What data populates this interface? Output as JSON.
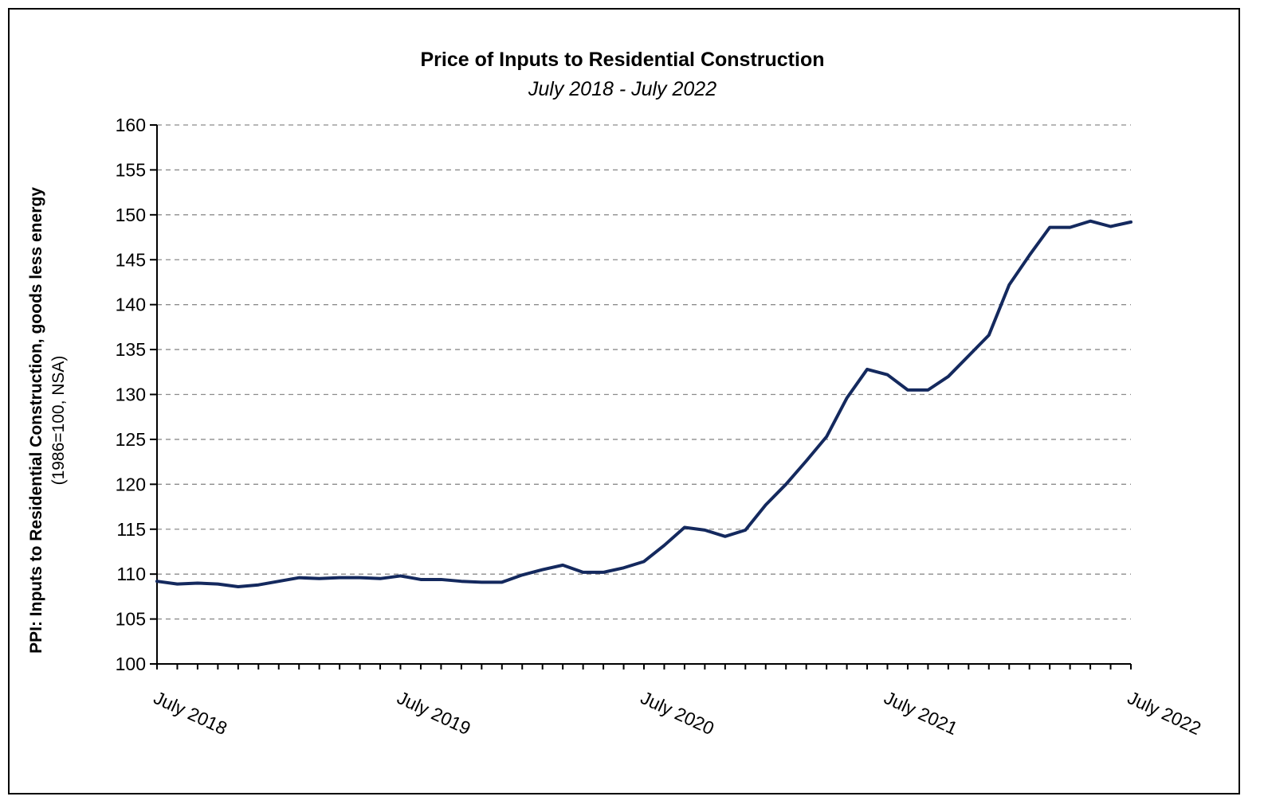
{
  "chart_data": {
    "type": "line",
    "title": "Price of Inputs to Residential Construction",
    "subtitle": "July 2018 - July 2022",
    "ylabel": "PPI: Inputs to Residential Construction, goods less energy",
    "ylabel_sub": "(1986=100, NSA)",
    "xlabel": "",
    "ylim": [
      100,
      160
    ],
    "yticks": [
      100,
      105,
      110,
      115,
      120,
      125,
      130,
      135,
      140,
      145,
      150,
      155,
      160
    ],
    "ytick_labels": [
      "100",
      "105",
      "110",
      "115",
      "120",
      "125",
      "130",
      "135",
      "140",
      "145",
      "150",
      "155",
      "160"
    ],
    "x_tick_labels": [
      "July 2018",
      "July 2019",
      "July 2020",
      "July 2021",
      "July 2022"
    ],
    "x_label_months": [
      0,
      12,
      24,
      36,
      48
    ],
    "grid": "horizontal-dashed",
    "line_color": "#14295e",
    "series": [
      {
        "values": [
          109.2,
          108.9,
          109.0,
          108.9,
          108.6,
          108.8,
          109.2,
          109.6,
          109.5,
          109.6,
          109.6,
          109.5,
          109.8,
          109.4,
          109.4,
          109.2,
          109.1,
          109.1,
          109.9,
          110.5,
          111.0,
          110.2,
          110.2,
          110.7,
          111.4,
          113.2,
          115.2,
          114.9,
          114.2,
          114.9,
          117.7,
          120.0,
          122.6,
          125.3,
          129.6,
          132.8,
          132.2,
          130.5,
          130.5,
          132.0,
          134.3,
          136.6,
          142.2,
          145.5,
          148.6,
          148.6,
          149.3,
          148.7,
          149.2
        ]
      }
    ]
  }
}
